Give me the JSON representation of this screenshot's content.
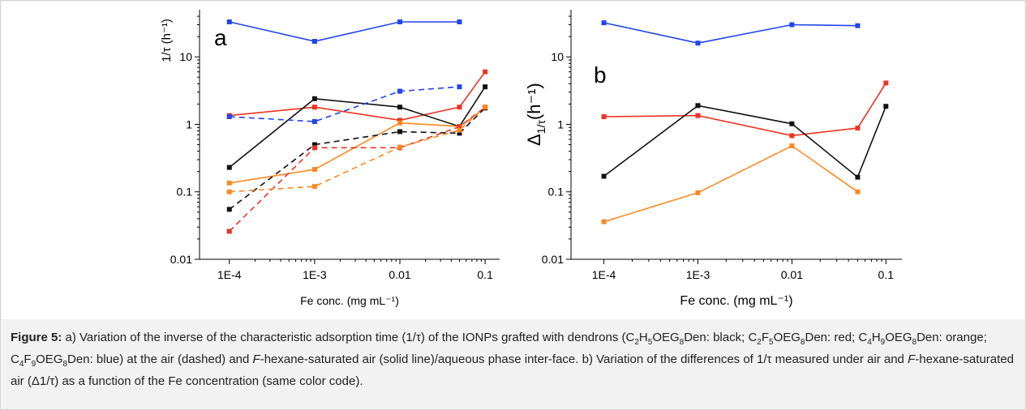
{
  "chart_data": [
    {
      "panel": "a",
      "type": "line",
      "yscale": "log",
      "ylim": [
        0.01,
        50
      ],
      "ylabel": "1/τ (h⁻¹)",
      "xlabel": "Fe conc. (mg mL⁻¹)",
      "categories": [
        "1E-4",
        "1E-3",
        "0.01",
        "0.1"
      ],
      "yticks": [
        "0.01",
        "0.1",
        "1",
        "10"
      ],
      "series": [
        {
          "color": "#2244ee",
          "style": "solid",
          "x": [
            0.0001,
            0.001,
            0.01,
            0.05
          ],
          "y": [
            33,
            17,
            33,
            33
          ]
        },
        {
          "color": "#ee3322",
          "style": "solid",
          "x": [
            0.0001,
            0.001,
            0.01,
            0.05,
            0.1
          ],
          "y": [
            1.35,
            1.8,
            1.15,
            1.8,
            6.0
          ]
        },
        {
          "color": "#111111",
          "style": "solid",
          "x": [
            0.0001,
            0.001,
            0.01,
            0.05,
            0.1
          ],
          "y": [
            0.23,
            2.4,
            1.8,
            0.93,
            3.6
          ]
        },
        {
          "color": "#ff8822",
          "style": "solid",
          "x": [
            0.0001,
            0.001,
            0.01,
            0.05,
            0.1
          ],
          "y": [
            0.135,
            0.215,
            1.05,
            0.93,
            1.75
          ]
        },
        {
          "color": "#2244ee",
          "style": "dashed",
          "x": [
            0.0001,
            0.001,
            0.01,
            0.05
          ],
          "y": [
            1.3,
            1.1,
            3.1,
            3.6
          ]
        },
        {
          "color": "#111111",
          "style": "dashed",
          "x": [
            0.0001,
            0.001,
            0.01,
            0.05,
            0.1
          ],
          "y": [
            0.055,
            0.5,
            0.78,
            0.74,
            1.75
          ]
        },
        {
          "color": "#ee3322",
          "style": "dashed",
          "x": [
            0.0001,
            0.001,
            0.01,
            0.05,
            0.1
          ],
          "y": [
            0.026,
            0.45,
            0.45,
            0.92,
            1.8
          ]
        },
        {
          "color": "#ff8822",
          "style": "dashed",
          "x": [
            0.0001,
            0.001,
            0.01,
            0.05,
            0.1
          ],
          "y": [
            0.1,
            0.12,
            0.46,
            0.82,
            1.8
          ]
        }
      ]
    },
    {
      "panel": "b",
      "type": "line",
      "yscale": "log",
      "ylim": [
        0.01,
        50
      ],
      "ylabel_main": "Δ",
      "ylabel_sub": "1/τ",
      "ylabel_unit": "(h⁻¹)",
      "xlabel": "Fe conc. (mg mL⁻¹)",
      "categories": [
        "1E-4",
        "1E-3",
        "0.01",
        "0.1"
      ],
      "yticks": [
        "0.01",
        "0.1",
        "1",
        "10"
      ],
      "series": [
        {
          "color": "#2244ee",
          "style": "solid",
          "x": [
            0.0001,
            0.001,
            0.01,
            0.05
          ],
          "y": [
            32,
            16,
            30,
            29
          ]
        },
        {
          "color": "#ee3322",
          "style": "solid",
          "x": [
            0.0001,
            0.001,
            0.01,
            0.05,
            0.1
          ],
          "y": [
            1.3,
            1.35,
            0.68,
            0.88,
            4.1
          ]
        },
        {
          "color": "#111111",
          "style": "solid",
          "x": [
            0.0001,
            0.001,
            0.01,
            0.05,
            0.1
          ],
          "y": [
            0.17,
            1.9,
            1.02,
            0.165,
            1.85
          ]
        },
        {
          "color": "#ff8822",
          "style": "solid",
          "x": [
            0.0001,
            0.001,
            0.01,
            0.05
          ],
          "y": [
            0.036,
            0.097,
            0.48,
            0.1
          ]
        }
      ]
    }
  ],
  "caption": {
    "label": "Figure 5:",
    "p1": " a) Variation of the inverse of the characteristic adsorption time (1/τ) of the IONPs grafted with dendrons (",
    "c1": [
      "C",
      "2",
      "H",
      "5",
      "OEG",
      "8",
      "Den"
    ],
    "p2": ": black; ",
    "c2": [
      "C",
      "2",
      "F",
      "5",
      "OEG",
      "8",
      "Den"
    ],
    "p3": ": red; ",
    "c3": [
      "C",
      "4",
      "H",
      "9",
      "OEG",
      "8",
      "Den"
    ],
    "p4": ": orange; ",
    "c4": [
      "C",
      "4",
      "F",
      "9",
      "OEG",
      "8",
      "Den"
    ],
    "p5": ": blue) at the air (dashed) and ",
    "f1": "F",
    "p6": "-hexane-saturated air (solid line)/aqueous phase inter-face. b) Variation of the differences of 1/τ measured under air and ",
    "f2": "F",
    "p7": "-hexane-saturated air (Δ1/τ) as a function of the Fe concentration (same color code)."
  }
}
